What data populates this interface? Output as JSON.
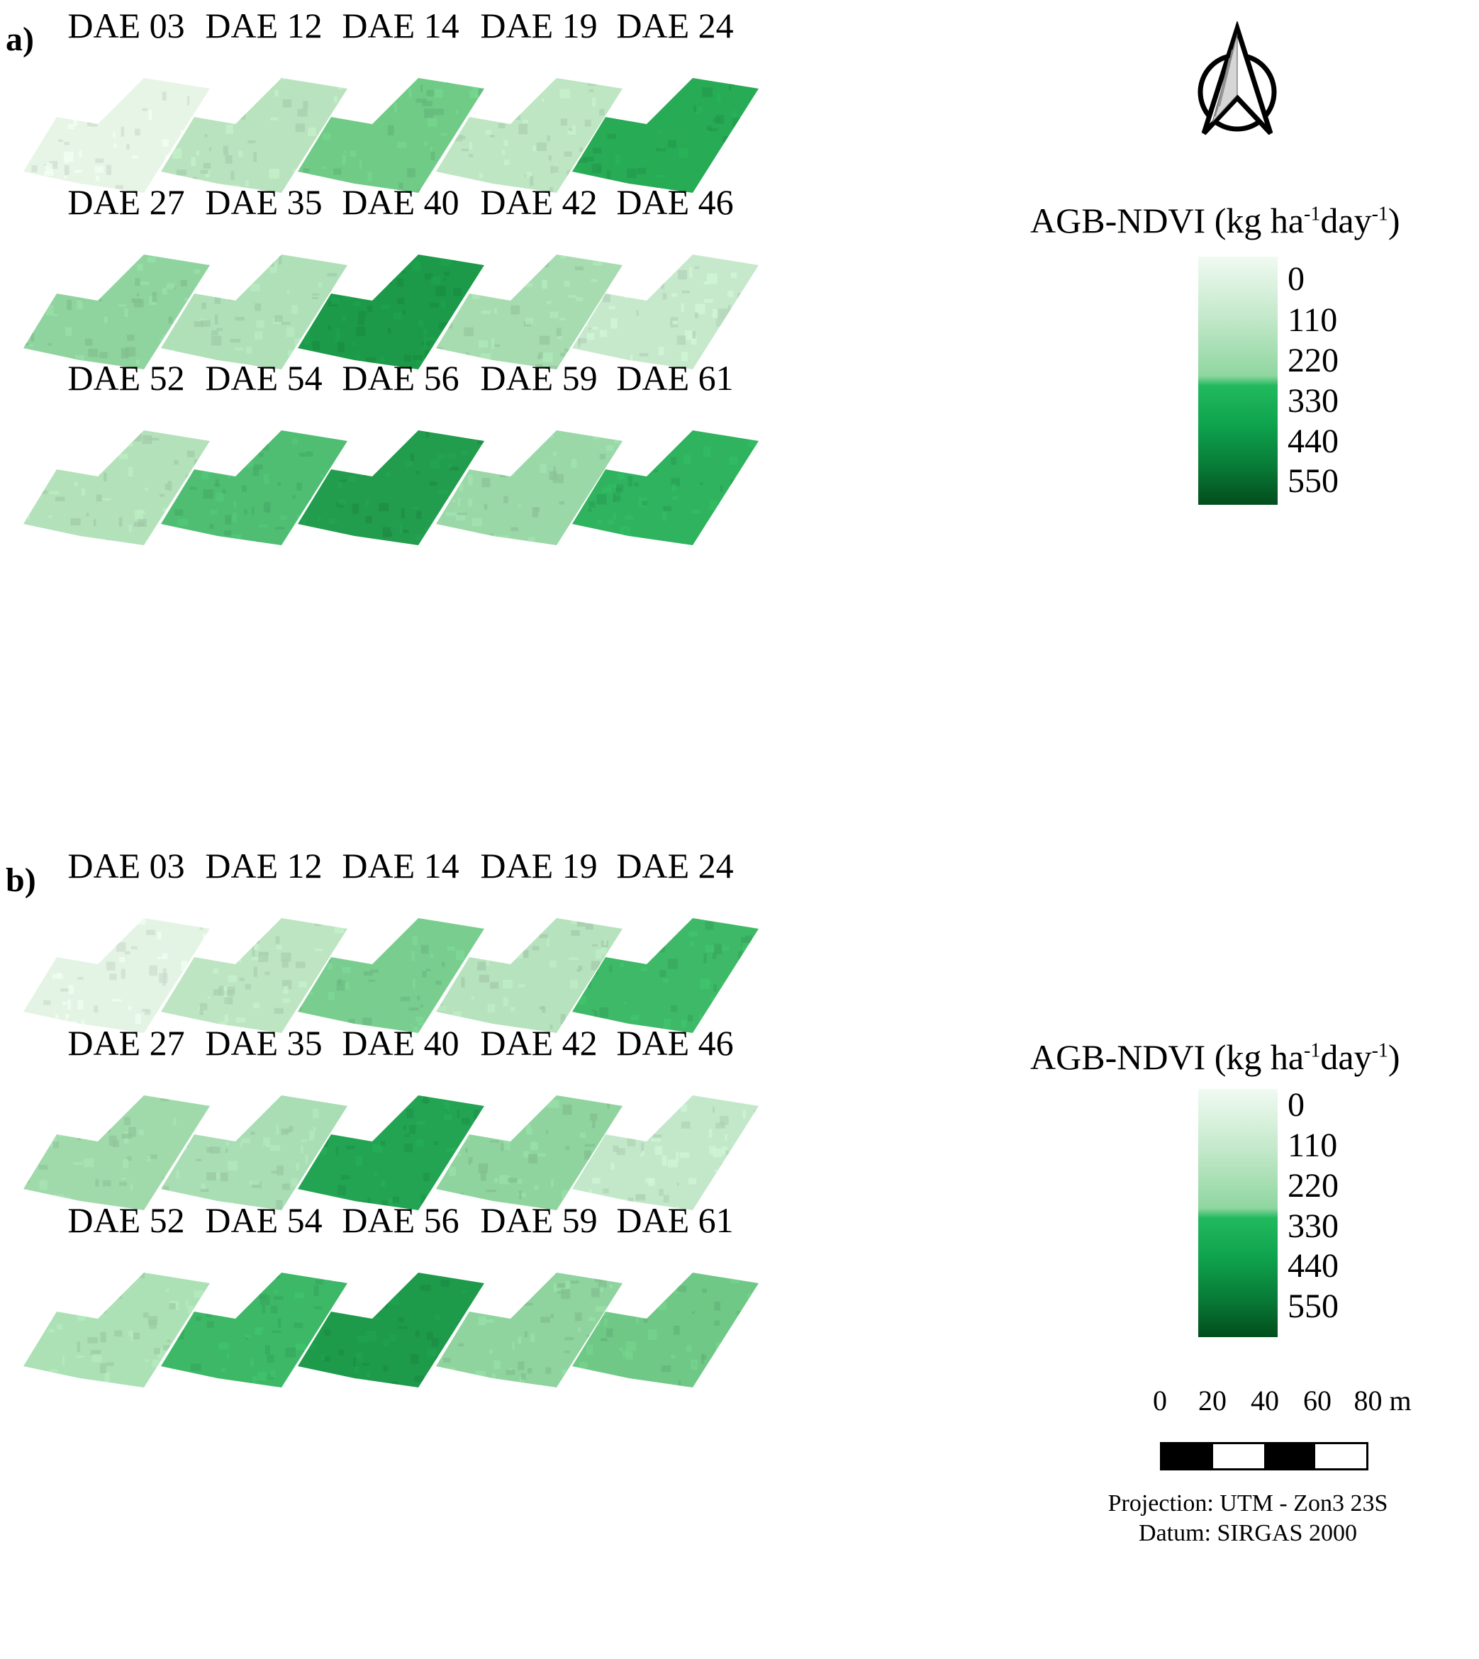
{
  "panels": [
    {
      "label": "a)",
      "maps": [
        {
          "title": "DAE 03",
          "color": "#e6f5e6"
        },
        {
          "title": "DAE 12",
          "color": "#b9e3bf"
        },
        {
          "title": "DAE 14",
          "color": "#6fcb86"
        },
        {
          "title": "DAE 19",
          "color": "#bee6c3"
        },
        {
          "title": "DAE 24",
          "color": "#27ab55"
        },
        {
          "title": "DAE 27",
          "color": "#8fd49f"
        },
        {
          "title": "DAE 35",
          "color": "#afe0b8"
        },
        {
          "title": "DAE 40",
          "color": "#1c9a49"
        },
        {
          "title": "DAE 42",
          "color": "#a6dcb0"
        },
        {
          "title": "DAE 46",
          "color": "#c6e9cc"
        },
        {
          "title": "DAE 52",
          "color": "#b3e1ba"
        },
        {
          "title": "DAE 54",
          "color": "#4fbe73"
        },
        {
          "title": "DAE 56",
          "color": "#229c4d"
        },
        {
          "title": "DAE 59",
          "color": "#9bd8a8"
        },
        {
          "title": "DAE 61",
          "color": "#2fb35e"
        }
      ],
      "legend": {
        "title": "AGB-NDVI (kg ha",
        "sup1": "-1",
        "mid": "day",
        "sup2": "-1",
        "end": ")",
        "ticks": [
          "0",
          "110",
          "220",
          "330",
          "440",
          "550"
        ]
      }
    },
    {
      "label": "b)",
      "maps": [
        {
          "title": "DAE 03",
          "color": "#e3f4e4"
        },
        {
          "title": "DAE 12",
          "color": "#bde5c2"
        },
        {
          "title": "DAE 14",
          "color": "#79ce8f"
        },
        {
          "title": "DAE 19",
          "color": "#b6e2bd"
        },
        {
          "title": "DAE 24",
          "color": "#3db967"
        },
        {
          "title": "DAE 27",
          "color": "#a0daab"
        },
        {
          "title": "DAE 35",
          "color": "#a9ddb3"
        },
        {
          "title": "DAE 40",
          "color": "#23a453"
        },
        {
          "title": "DAE 42",
          "color": "#8fd49f"
        },
        {
          "title": "DAE 46",
          "color": "#c3e8c9"
        },
        {
          "title": "DAE 52",
          "color": "#ace0b5"
        },
        {
          "title": "DAE 54",
          "color": "#3cb866"
        },
        {
          "title": "DAE 56",
          "color": "#1e9a4b"
        },
        {
          "title": "DAE 59",
          "color": "#8fd49f"
        },
        {
          "title": "DAE 61",
          "color": "#6fc886"
        }
      ],
      "legend": {
        "title": "AGB-NDVI (kg ha",
        "sup1": "-1",
        "mid": "day",
        "sup2": "-1",
        "end": ")",
        "ticks": [
          "0",
          "110",
          "220",
          "330",
          "440",
          "550"
        ]
      }
    }
  ],
  "scale": {
    "labels": [
      "0",
      "20",
      "40",
      "60",
      "80 m"
    ]
  },
  "footer": {
    "projection": "Projection: UTM - Zon3 23S",
    "datum": "Datum: SIRGAS 2000"
  }
}
